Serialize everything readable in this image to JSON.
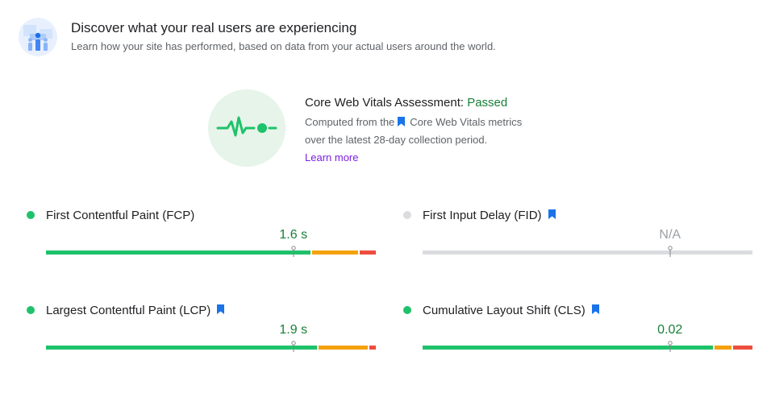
{
  "header": {
    "title": "Discover what your real users are experiencing",
    "subtitle": "Learn how your site has performed, based on data from your actual users around the world.",
    "logo_icon": "crux-users-chart-icon"
  },
  "assessment": {
    "title_prefix": "Core Web Vitals Assessment: ",
    "status": "Passed",
    "status_color": "#188038",
    "desc_part1": "Computed from the",
    "desc_part2": "Core Web Vitals metrics",
    "desc_part3": "over the latest 28-day collection period.",
    "learn_more": "Learn more",
    "badge_icon": "heartbeat-pulse-icon"
  },
  "colors": {
    "good": "#1ec26a",
    "needs_improvement": "#f4a20b",
    "poor": "#ee4e3e",
    "na": "#dadce0",
    "bookmark": "#1a73e8"
  },
  "metrics": [
    {
      "label": "First Contentful Paint (FCP)",
      "value": "1.6 s",
      "core_web_vital": false,
      "status": "good",
      "marker_fraction": 0.75,
      "distribution_percent": {
        "good": 81,
        "needs_improvement": 14,
        "poor": 5
      }
    },
    {
      "label": "First Input Delay (FID)",
      "value": "N/A",
      "core_web_vital": true,
      "status": "na",
      "marker_fraction": 0.75,
      "distribution_percent": null
    },
    {
      "label": "Largest Contentful Paint (LCP)",
      "value": "1.9 s",
      "core_web_vital": true,
      "status": "good",
      "marker_fraction": 0.75,
      "distribution_percent": {
        "good": 83,
        "needs_improvement": 15,
        "poor": 2
      }
    },
    {
      "label": "Cumulative Layout Shift (CLS)",
      "value": "0.02",
      "core_web_vital": true,
      "status": "good",
      "marker_fraction": 0.75,
      "distribution_percent": {
        "good": 89,
        "needs_improvement": 5,
        "poor": 6
      }
    }
  ]
}
